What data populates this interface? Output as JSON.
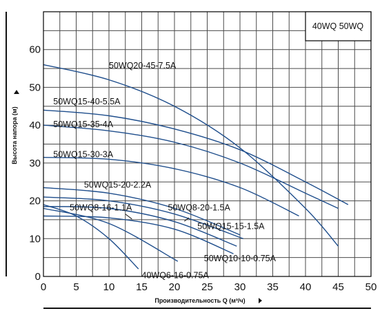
{
  "chart_data": {
    "type": "line",
    "legend_box": "40WQ 50WQ",
    "legend_placement": "top-right",
    "xlabel": "Производительность Q (м³/ч)",
    "ylabel": "Высота напора (м)",
    "xlim": [
      0,
      50
    ],
    "ylim": [
      0,
      70
    ],
    "x_ticks": [
      "0",
      "5",
      "10",
      "15",
      "20",
      "25",
      "30",
      "35",
      "40",
      "45",
      "50"
    ],
    "y_ticks": [
      "0",
      "10",
      "20",
      "30",
      "40",
      "50",
      "60"
    ],
    "grid": true,
    "colors": {
      "series": "#1f4e8c",
      "grid": "#4a4a4a",
      "frame": "#000000"
    },
    "series": [
      {
        "name": "50WQ20-45-7.5A",
        "label_pos": [
          10,
          55
        ],
        "x": [
          0,
          10,
          20,
          30,
          40,
          45
        ],
        "y": [
          56,
          52,
          45,
          34,
          18,
          8
        ]
      },
      {
        "name": "50WQ15-40-5.5A",
        "label_pos": [
          1.5,
          45.5
        ],
        "x": [
          0,
          10,
          20,
          30,
          40,
          46.5
        ],
        "y": [
          44,
          42.5,
          39,
          33.5,
          25,
          19
        ]
      },
      {
        "name": "50WQ15-35-4A",
        "label_pos": [
          1.5,
          39.5
        ],
        "x": [
          0,
          10,
          20,
          30,
          40,
          45
        ],
        "y": [
          40,
          38.5,
          35.5,
          30,
          22,
          18
        ]
      },
      {
        "name": "50WQ15-30-3A",
        "label_pos": [
          1.5,
          31.5
        ],
        "x": [
          0,
          10,
          20,
          30,
          39
        ],
        "y": [
          31.5,
          31,
          28.5,
          23.5,
          16
        ]
      },
      {
        "name": "50WQ15-20-2.2A",
        "label_pos": [
          6.2,
          23.5
        ],
        "x": [
          0,
          10,
          20,
          30
        ],
        "y": [
          23.5,
          22,
          18,
          11
        ]
      },
      {
        "name": "50WQ8-20-1.5A",
        "label_pos": [
          19,
          17.5
        ],
        "x": [
          0,
          10,
          20,
          30.5
        ],
        "y": [
          21,
          20,
          16.5,
          10
        ]
      },
      {
        "name": "50WQ15-15-1.5A",
        "label_pos": [
          23.5,
          12.5
        ],
        "x": [
          0,
          10,
          20,
          29.5
        ],
        "y": [
          18.5,
          18,
          14.5,
          8
        ]
      },
      {
        "name": "50WQ8-16-1.1A",
        "label_pos": [
          4,
          17.5
        ],
        "x": [
          0,
          10,
          20,
          29
        ],
        "y": [
          16,
          15.5,
          12.5,
          6
        ]
      },
      {
        "name": "50WQ10-10-0.75A",
        "label_pos": [
          24.5,
          4
        ],
        "x": [
          0,
          10,
          20.5
        ],
        "y": [
          18,
          14,
          4
        ]
      },
      {
        "name": "40WQ6-16-0.75A",
        "label_pos": [
          15,
          -0.5
        ],
        "x": [
          0,
          5,
          10,
          14.5
        ],
        "y": [
          19,
          16,
          10,
          2
        ]
      }
    ]
  }
}
